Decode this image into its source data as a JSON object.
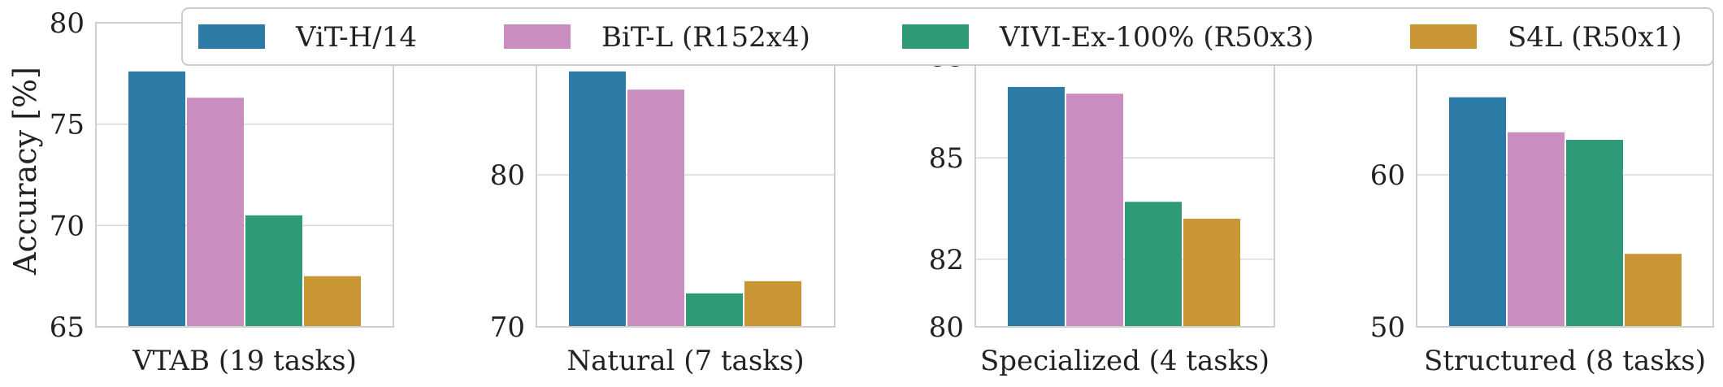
{
  "colors": {
    "ViT-H/14": "#2c7aa6",
    "BiT-L (R152x4)": "#c98dbf",
    "VIVI-Ex-100% (R50x3)": "#2e9a78",
    "S4L (R50x1)": "#c99634",
    "grid": "#d9d9d9",
    "spine": "#cfcfcf"
  },
  "legend": {
    "position": "top",
    "entries": [
      "ViT-H/14",
      "BiT-L (R152x4)",
      "VIVI-Ex-100% (R50x3)",
      "S4L (R50x1)"
    ]
  },
  "ylabel": "Accuracy [%]",
  "chart_data": [
    {
      "type": "bar",
      "xlabel": "VTAB (19 tasks)",
      "ylim": [
        65,
        80
      ],
      "yticks": [
        65,
        70,
        75,
        80
      ],
      "grid": true,
      "series": [
        {
          "name": "ViT-H/14",
          "values": [
            77.6
          ]
        },
        {
          "name": "BiT-L (R152x4)",
          "values": [
            76.3
          ]
        },
        {
          "name": "VIVI-Ex-100% (R50x3)",
          "values": [
            70.5
          ]
        },
        {
          "name": "S4L (R50x1)",
          "values": [
            67.5
          ]
        }
      ]
    },
    {
      "type": "bar",
      "xlabel": "Natural (7 tasks)",
      "ylim": [
        70,
        90
      ],
      "yticks": [
        70,
        80
      ],
      "grid": true,
      "series": [
        {
          "name": "ViT-H/14",
          "values": [
            86.8
          ]
        },
        {
          "name": "BiT-L (R152x4)",
          "values": [
            85.6
          ]
        },
        {
          "name": "VIVI-Ex-100% (R50x3)",
          "values": [
            72.2
          ]
        },
        {
          "name": "S4L (R50x1)",
          "values": [
            73.0
          ]
        }
      ]
    },
    {
      "type": "bar",
      "xlabel": "Specialized (4 tasks)",
      "ylim": [
        80,
        89
      ],
      "yticks": [
        80,
        82,
        85,
        88
      ],
      "ytick_labels": [
        "80",
        "82",
        "85",
        "88"
      ],
      "grid": true,
      "series": [
        {
          "name": "ViT-H/14",
          "values": [
            87.1
          ]
        },
        {
          "name": "BiT-L (R152x4)",
          "values": [
            86.9
          ]
        },
        {
          "name": "VIVI-Ex-100% (R50x3)",
          "values": [
            83.7
          ]
        },
        {
          "name": "S4L (R50x1)",
          "values": [
            83.2
          ]
        }
      ]
    },
    {
      "type": "bar",
      "xlabel": "Structured (8 tasks)",
      "ylim": [
        50,
        70
      ],
      "yticks": [
        50,
        60
      ],
      "grid": true,
      "series": [
        {
          "name": "ViT-H/14",
          "values": [
            65.1
          ]
        },
        {
          "name": "BiT-L (R152x4)",
          "values": [
            62.8
          ]
        },
        {
          "name": "VIVI-Ex-100% (R50x3)",
          "values": [
            62.3
          ]
        },
        {
          "name": "S4L (R50x1)",
          "values": [
            54.8
          ]
        }
      ]
    }
  ]
}
